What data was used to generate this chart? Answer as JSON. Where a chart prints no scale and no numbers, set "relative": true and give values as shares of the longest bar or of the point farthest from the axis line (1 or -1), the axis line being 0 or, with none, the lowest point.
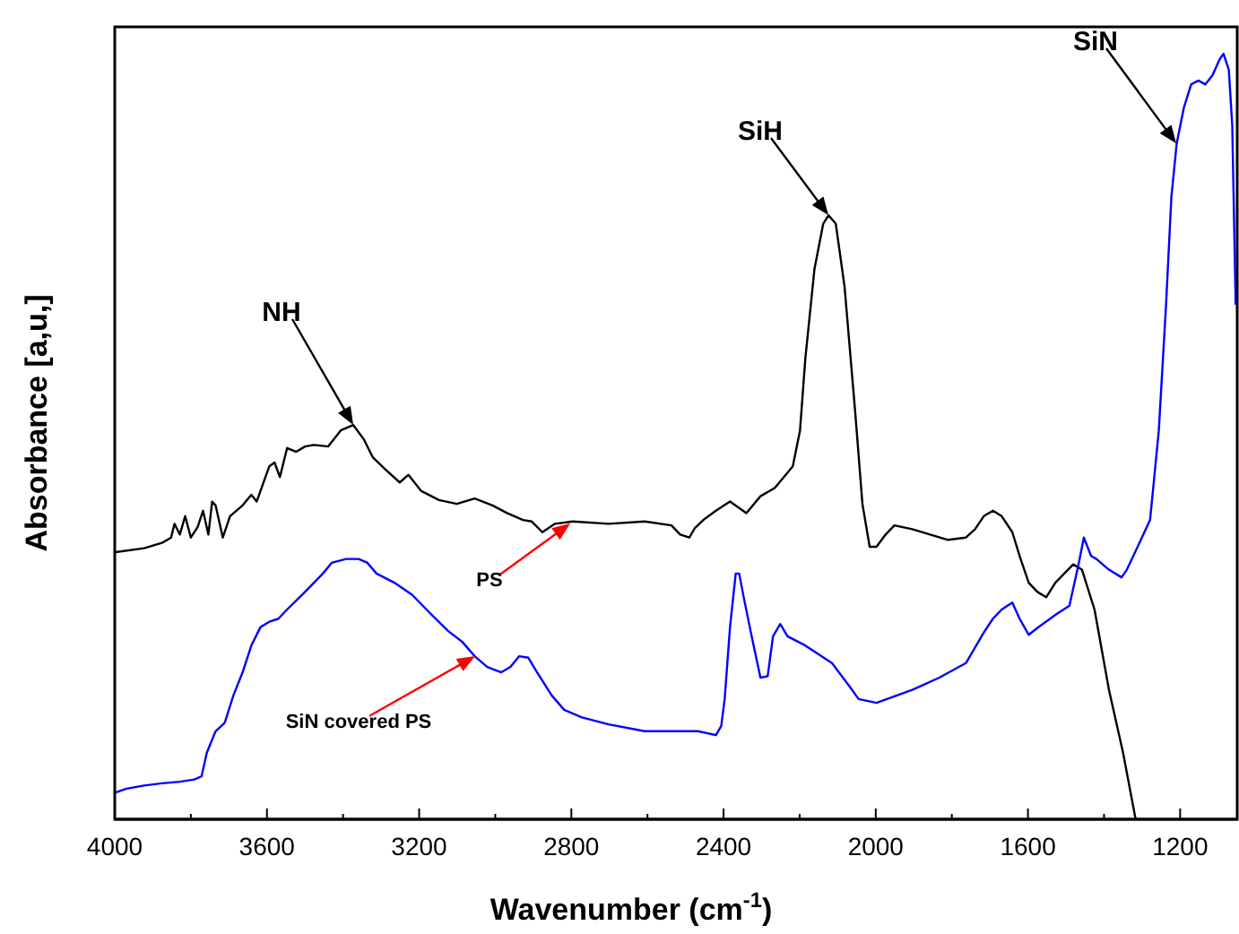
{
  "chart_data": {
    "type": "line",
    "relative": true,
    "xlabel": "Wavenumber (cm$^{-1}$)",
    "ylabel": "Absorbance [a,u,]",
    "xlim": [
      4000,
      1050
    ],
    "xticks": [
      4000,
      {
        "value": 3800,
        "label": null
      },
      3600,
      {
        "value": 3400,
        "label": null
      },
      3200,
      {
        "value": 3000,
        "label": null
      },
      2800,
      {
        "value": 2600,
        "label": null
      },
      2400,
      {
        "value": 2200,
        "label": null
      },
      2000,
      {
        "value": 1800,
        "label": null
      },
      1600,
      {
        "value": 1400,
        "label": null
      },
      1200
    ],
    "tick_labels": "x",
    "grid": false,
    "marker": "none",
    "line_style": "solid",
    "series": [
      {
        "color": "#000000",
        "x": [
          3998,
          3923,
          3876,
          3852,
          3843,
          3829,
          3815,
          3800,
          3782,
          3768,
          3754,
          3744,
          3735,
          3716,
          3697,
          3664,
          3641,
          3627,
          3594,
          3580,
          3566,
          3547,
          3523,
          3500,
          3477,
          3439,
          3406,
          3373,
          3345,
          3322,
          3289,
          3251,
          3228,
          3195,
          3148,
          3101,
          3054,
          3007,
          2969,
          2927,
          2904,
          2876,
          2843,
          2796,
          2702,
          2607,
          2537,
          2514,
          2490,
          2476,
          2453,
          2420,
          2383,
          2340,
          2303,
          2265,
          2218,
          2199,
          2185,
          2161,
          2138,
          2124,
          2105,
          2082,
          2054,
          2035,
          2016,
          1998,
          1974,
          1951,
          1904,
          1857,
          1810,
          1763,
          1739,
          1716,
          1692,
          1669,
          1641,
          1622,
          1598,
          1575,
          1552,
          1528,
          1481,
          1458,
          1425,
          1387,
          1350,
          1317
        ],
        "values": [
          0.349,
          0.354,
          0.361,
          0.368,
          0.386,
          0.372,
          0.396,
          0.368,
          0.382,
          0.403,
          0.372,
          0.415,
          0.41,
          0.368,
          0.396,
          0.41,
          0.424,
          0.415,
          0.461,
          0.466,
          0.447,
          0.485,
          0.48,
          0.487,
          0.489,
          0.487,
          0.508,
          0.515,
          0.496,
          0.473,
          0.457,
          0.44,
          0.45,
          0.429,
          0.417,
          0.412,
          0.419,
          0.41,
          0.4,
          0.391,
          0.389,
          0.375,
          0.386,
          0.389,
          0.386,
          0.389,
          0.384,
          0.372,
          0.368,
          0.38,
          0.391,
          0.403,
          0.415,
          0.4,
          0.422,
          0.433,
          0.461,
          0.508,
          0.602,
          0.719,
          0.778,
          0.789,
          0.778,
          0.696,
          0.532,
          0.412,
          0.356,
          0.356,
          0.372,
          0.384,
          0.379,
          0.372,
          0.365,
          0.368,
          0.379,
          0.396,
          0.403,
          0.396,
          0.375,
          0.344,
          0.309,
          0.297,
          0.29,
          0.309,
          0.333,
          0.326,
          0.274,
          0.169,
          0.087,
          0
        ]
      },
      {
        "color": "#0000ff",
        "x": [
          3998,
          3969,
          3923,
          3876,
          3829,
          3791,
          3772,
          3758,
          3735,
          3711,
          3688,
          3664,
          3641,
          3617,
          3594,
          3570,
          3547,
          3500,
          3453,
          3430,
          3392,
          3359,
          3336,
          3312,
          3265,
          3218,
          3171,
          3124,
          3087,
          3054,
          3021,
          2984,
          2960,
          2937,
          2913,
          2890,
          2852,
          2819,
          2772,
          2702,
          2607,
          2537,
          2467,
          2420,
          2406,
          2397,
          2383,
          2368,
          2359,
          2345,
          2326,
          2303,
          2284,
          2270,
          2251,
          2232,
          2185,
          2115,
          2068,
          2045,
          1998,
          1904,
          1833,
          1763,
          1716,
          1692,
          1669,
          1641,
          1622,
          1598,
          1575,
          1528,
          1491,
          1467,
          1453,
          1434,
          1420,
          1387,
          1354,
          1340,
          1307,
          1279,
          1256,
          1237,
          1223,
          1209,
          1190,
          1171,
          1152,
          1134,
          1115,
          1096,
          1086,
          1072,
          1063,
          1054
        ],
        "values": [
          0.035,
          0.04,
          0.044,
          0.047,
          0.049,
          0.052,
          0.056,
          0.087,
          0.115,
          0.126,
          0.162,
          0.192,
          0.227,
          0.251,
          0.258,
          0.262,
          0.274,
          0.297,
          0.321,
          0.335,
          0.34,
          0.34,
          0.335,
          0.321,
          0.309,
          0.293,
          0.269,
          0.246,
          0.232,
          0.213,
          0.199,
          0.192,
          0.199,
          0.213,
          0.211,
          0.192,
          0.162,
          0.143,
          0.133,
          0.124,
          0.115,
          0.115,
          0.115,
          0.11,
          0.122,
          0.157,
          0.251,
          0.321,
          0.321,
          0.285,
          0.239,
          0.185,
          0.187,
          0.239,
          0.255,
          0.239,
          0.227,
          0.204,
          0.173,
          0.157,
          0.152,
          0.169,
          0.185,
          0.204,
          0.244,
          0.262,
          0.274,
          0.283,
          0.262,
          0.241,
          0.25,
          0.267,
          0.279,
          0.333,
          0.368,
          0.344,
          0.34,
          0.326,
          0.316,
          0.326,
          0.361,
          0.391,
          0.508,
          0.672,
          0.813,
          0.883,
          0.93,
          0.96,
          0.965,
          0.96,
          0.972,
          0.993,
          1,
          0.979,
          0.906,
          0.672
        ]
      }
    ],
    "annotations": [
      "NH",
      "SiH",
      "SiN",
      "PS",
      "SiN covered PS"
    ]
  }
}
